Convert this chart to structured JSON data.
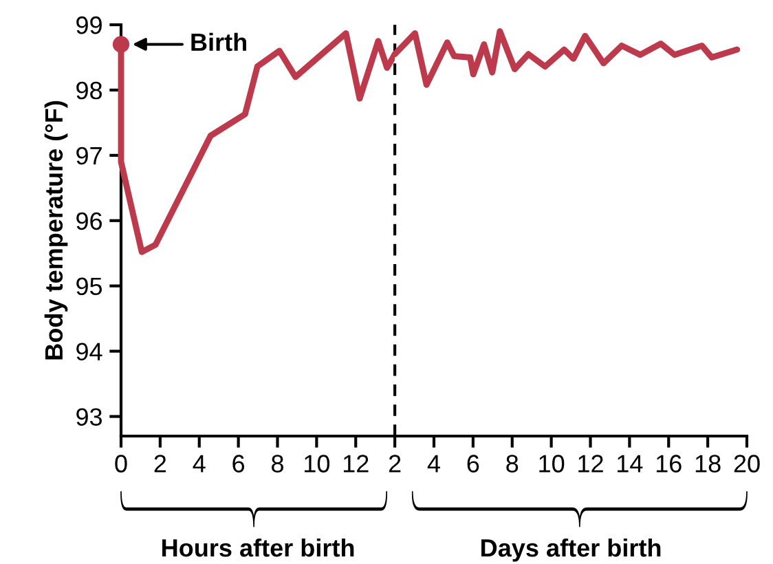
{
  "chart_data": [
    {
      "type": "line",
      "xlabel": "Hours after birth",
      "ylabel": "Body temperature (°F)",
      "xlim": [
        0,
        14
      ],
      "xticks": [
        0,
        2,
        4,
        6,
        8,
        10,
        12
      ],
      "ylim": [
        92.7,
        99
      ],
      "yticks": [
        93,
        94,
        95,
        96,
        97,
        98,
        99
      ],
      "grid": false,
      "annotations": [
        {
          "text": "Birth",
          "x": 0,
          "y": 98.7
        }
      ],
      "series": [
        {
          "color": "#bc3a4c",
          "x": [
            0,
            0,
            1.06,
            1.76,
            4.58,
            6.34,
            6.97,
            8.1,
            8.92,
            11.5,
            12.2,
            13.15,
            13.6,
            14
          ],
          "values": [
            98.7,
            96.9,
            95.52,
            95.63,
            97.3,
            97.63,
            98.36,
            98.6,
            98.2,
            98.87,
            97.87,
            98.75,
            98.34,
            98.55
          ]
        },
        {
          "type": "scatter",
          "color": "#bc3a4c",
          "marker": "circle",
          "x": [
            0
          ],
          "values": [
            98.7
          ]
        }
      ]
    },
    {
      "type": "line",
      "xlabel": "Days after birth",
      "xlim": [
        2,
        20
      ],
      "xticks": [
        2,
        4,
        6,
        8,
        10,
        12,
        14,
        16,
        18,
        20
      ],
      "ylim": [
        92.7,
        99
      ],
      "tick_labels": "x",
      "grid": false,
      "ref_lines": [
        {
          "axis": "x",
          "value": 2,
          "color": "#000000",
          "line_style": "dashed"
        }
      ],
      "series": [
        {
          "color": "#bc3a4c",
          "x": [
            2,
            3.03,
            3.62,
            4.68,
            5.03,
            5.85,
            6.01,
            6.56,
            6.98,
            7.37,
            8.13,
            8.83,
            9.68,
            10.66,
            11.13,
            11.73,
            12.67,
            13.6,
            14.55,
            15.6,
            16.3,
            17.7,
            18.2,
            19.5
          ],
          "values": [
            98.55,
            98.87,
            98.08,
            98.73,
            98.52,
            98.5,
            98.24,
            98.7,
            98.27,
            98.9,
            98.32,
            98.55,
            98.36,
            98.62,
            98.48,
            98.83,
            98.41,
            98.68,
            98.54,
            98.71,
            98.54,
            98.68,
            98.5,
            98.62
          ]
        }
      ]
    }
  ]
}
